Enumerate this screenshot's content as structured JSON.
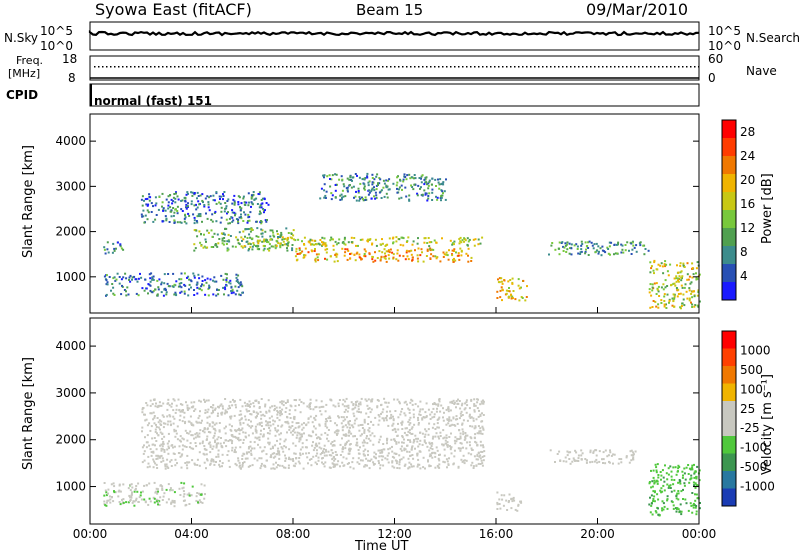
{
  "header": {
    "title_left": "Syowa East (fitACF)",
    "title_center": "Beam 15",
    "title_right": "09/Mar/2010"
  },
  "top_panels": {
    "nsky_label": "N.Sky",
    "nsearch_label": "N.Search",
    "nsky_ticks": [
      "10^5",
      "10^0"
    ],
    "nsearch_ticks": [
      "10^5",
      "10^0"
    ],
    "freq_label_line1": "Freq.",
    "freq_label_line2": "[MHz]",
    "freq_ticks": [
      "18",
      "8"
    ],
    "nave_label": "Nave",
    "nave_ticks": [
      "60",
      "0"
    ],
    "cpid_label": "CPID",
    "cpid_value": "normal (fast) 151"
  },
  "chart_data": [
    {
      "type": "heatmap",
      "name": "power",
      "ylabel": "Slant Range [km]",
      "xlabel": "",
      "xlim_hours": [
        0,
        24
      ],
      "ylim": [
        200,
        4600
      ],
      "yticks": [
        "1000",
        "2000",
        "3000",
        "4000"
      ],
      "xticks": [
        "00:00",
        "04:00",
        "08:00",
        "12:00",
        "16:00",
        "20:00",
        "00:00"
      ],
      "colorbar": {
        "label": "Power [dB]",
        "range": [
          0,
          30
        ],
        "ticks": [
          "4",
          "8",
          "12",
          "16",
          "20",
          "24",
          "28"
        ],
        "colors": [
          "#1a1aff",
          "#2850b4",
          "#3c8c8c",
          "#50a050",
          "#78c83c",
          "#c8c814",
          "#f0b400",
          "#f07800",
          "#ff3c00",
          "#ff0000"
        ]
      },
      "regions": [
        {
          "t0": 0.5,
          "t1": 1.3,
          "r0": 1500,
          "r1": 1800,
          "level": 8
        },
        {
          "t0": 2.0,
          "t1": 7.0,
          "r0": 2200,
          "r1": 2900,
          "level": 7
        },
        {
          "t0": 4.0,
          "t1": 8.0,
          "r0": 1600,
          "r1": 2100,
          "level": 12
        },
        {
          "t0": 6.0,
          "t1": 15.5,
          "r0": 1700,
          "r1": 1900,
          "level": 15
        },
        {
          "t0": 8.0,
          "t1": 15.0,
          "r0": 1350,
          "r1": 1650,
          "level": 20
        },
        {
          "t0": 9.0,
          "t1": 14.0,
          "r0": 2700,
          "r1": 3300,
          "level": 8
        },
        {
          "t0": 0.5,
          "t1": 6.0,
          "r0": 600,
          "r1": 1100,
          "level": 7
        },
        {
          "t0": 16.0,
          "t1": 17.2,
          "r0": 500,
          "r1": 1000,
          "level": 18
        },
        {
          "t0": 18.0,
          "t1": 22.0,
          "r0": 1500,
          "r1": 1800,
          "level": 9
        },
        {
          "t0": 22.0,
          "t1": 24.0,
          "r0": 300,
          "r1": 1400,
          "level": 16
        }
      ]
    },
    {
      "type": "heatmap",
      "name": "velocity",
      "ylabel": "Slant Range [km]",
      "xlabel": "Time UT",
      "xlim_hours": [
        0,
        24
      ],
      "ylim": [
        200,
        4600
      ],
      "yticks": [
        "1000",
        "2000",
        "3000",
        "4000"
      ],
      "xticks": [
        "00:00",
        "04:00",
        "08:00",
        "12:00",
        "16:00",
        "20:00",
        "00:00"
      ],
      "colorbar": {
        "label": "Velocity [m s⁻¹]",
        "range": [
          -1200,
          1200
        ],
        "ticks": [
          "1000",
          "500",
          "100",
          "25",
          "-25",
          "-100",
          "-500",
          "-1000"
        ],
        "colors": [
          "#1a3cb4",
          "#2878a0",
          "#3c9650",
          "#50c83c",
          "#c8c8c0",
          "#c8c8c0",
          "#f0b400",
          "#f07800",
          "#ff4000",
          "#ff0000"
        ]
      },
      "regions": [
        {
          "t0": 2.0,
          "t1": 15.5,
          "r0": 1400,
          "r1": 2900,
          "level": 0
        },
        {
          "t0": 0.5,
          "t1": 4.5,
          "r0": 600,
          "r1": 1100,
          "level": -150
        },
        {
          "t0": 16.0,
          "t1": 17.0,
          "r0": 500,
          "r1": 900,
          "level": 100
        },
        {
          "t0": 18.0,
          "t1": 21.5,
          "r0": 1500,
          "r1": 1800,
          "level": 0
        },
        {
          "t0": 22.0,
          "t1": 24.0,
          "r0": 400,
          "r1": 1500,
          "level": -400
        }
      ]
    }
  ]
}
